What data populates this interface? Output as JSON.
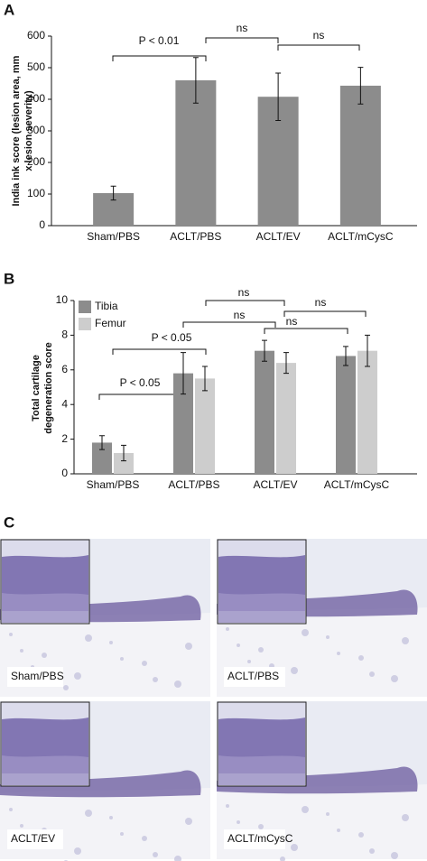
{
  "chart_data": [
    {
      "type": "bar",
      "label": "A",
      "y_label": [
        "India ink score (lesion area, mm",
        "x lesion severity)"
      ],
      "categories": [
        "Sham/PBS",
        "ACLT/PBS",
        "ACLT/EV",
        "ACLT/mCysC"
      ],
      "values": [
        103,
        460,
        408,
        443
      ],
      "errors": [
        22,
        72,
        75,
        58
      ],
      "color": "#8c8c8c",
      "ylim": [
        0,
        600
      ],
      "yticks": [
        0,
        100,
        200,
        300,
        400,
        500,
        600
      ],
      "annotations": [
        "P  < 0.01",
        "ns",
        "ns"
      ]
    },
    {
      "type": "grouped_bar",
      "label": "B",
      "y_label": [
        "Total cartilage",
        "degeneration score"
      ],
      "categories": [
        "Sham/PBS",
        "ACLT/PBS",
        "ACLT/EV",
        "ACLT/mCysC"
      ],
      "series": [
        {
          "name": "Tibia",
          "color": "#8c8c8c",
          "values": [
            1.8,
            5.8,
            7.1,
            6.8
          ],
          "errors": [
            0.4,
            1.2,
            0.6,
            0.55
          ]
        },
        {
          "name": "Femur",
          "color": "#cdcdcd",
          "values": [
            1.2,
            5.5,
            6.4,
            7.1
          ],
          "errors": [
            0.45,
            0.7,
            0.6,
            0.9
          ]
        }
      ],
      "ylim": [
        0,
        10
      ],
      "yticks": [
        0,
        2,
        4,
        6,
        8,
        10
      ],
      "legend": "upper left",
      "annotations": [
        "ns",
        "ns",
        "ns",
        "ns",
        "P < 0.05",
        "P < 0.05"
      ]
    }
  ],
  "histology": {
    "label": "C",
    "panels": [
      "Sham/PBS",
      "ACLT/PBS",
      "ACLT/EV",
      "ACLT/mCysC"
    ]
  }
}
